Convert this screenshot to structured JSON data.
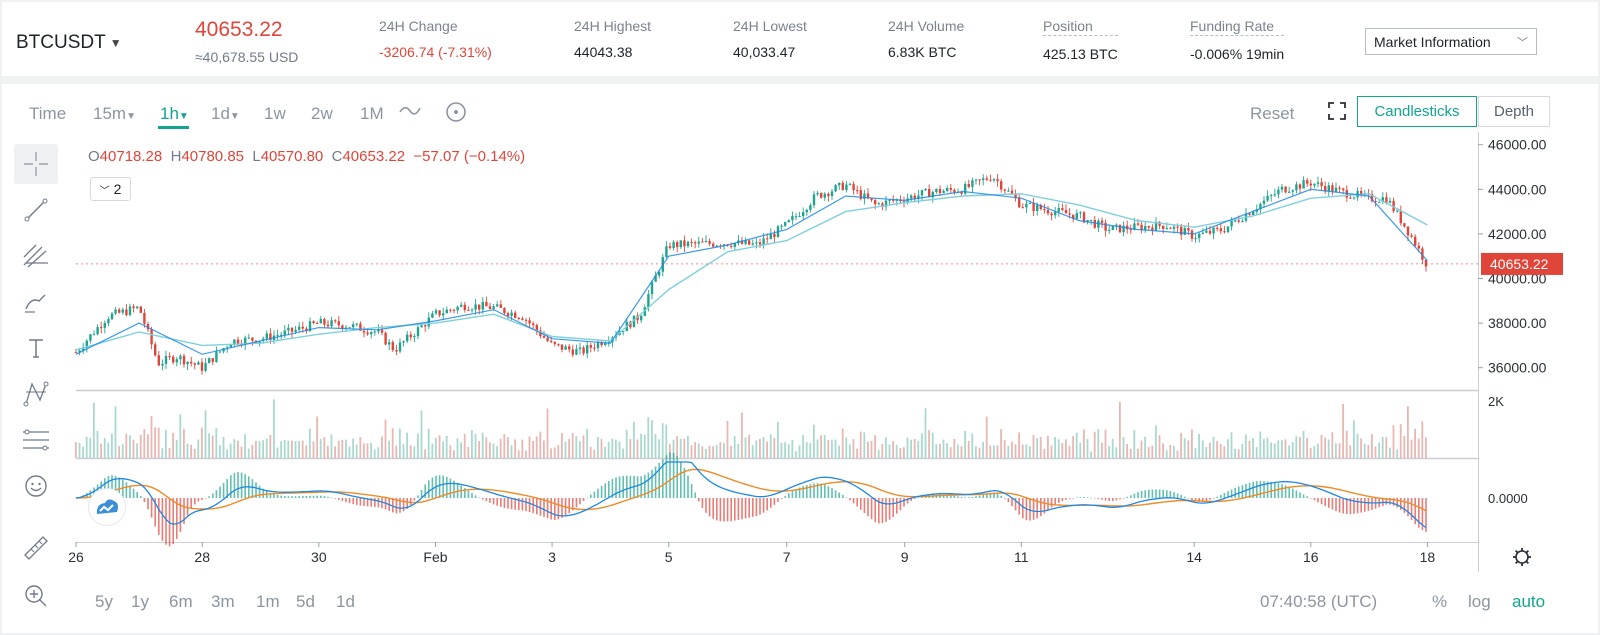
{
  "ticker": {
    "symbol": "BTCUSDT",
    "last_price": "40653.22",
    "usd_equiv": "≈40,678.55 USD",
    "stats": [
      {
        "label": "24H Change",
        "value": "-3206.74 (-7.31%)",
        "negative": true
      },
      {
        "label": "24H Highest",
        "value": "44043.38"
      },
      {
        "label": "24H Lowest",
        "value": "40,033.47"
      },
      {
        "label": "24H Volume",
        "value": "6.83K BTC"
      },
      {
        "label": "Position",
        "value": "425.13 BTC"
      },
      {
        "label": "Funding Rate",
        "value": "-0.006% 19min"
      }
    ],
    "market_info_label": "Market Information"
  },
  "toolbar": {
    "time_label": "Time",
    "intervals": [
      "15m",
      "1h",
      "1d",
      "1w",
      "2w",
      "1M"
    ],
    "active_interval": "1h",
    "reset_label": "Reset",
    "candlesticks_label": "Candlesticks",
    "depth_label": "Depth"
  },
  "ohlc": {
    "o_key": "O",
    "o": "40718.28",
    "h_key": "H",
    "h": "40780.85",
    "l_key": "L",
    "l": "40570.80",
    "c_key": "C",
    "c": "40653.22",
    "change": "−57.07 (−0.14%)"
  },
  "indicator_toggle": "2",
  "bottom": {
    "ranges": [
      "5y",
      "1y",
      "6m",
      "3m",
      "1m",
      "5d",
      "1d"
    ],
    "clock": "07:40:58 (UTC)",
    "percent": "%",
    "log": "log",
    "auto": "auto"
  },
  "colors": {
    "accent": "#12a48f",
    "up": "#1fa58f",
    "down": "#e0453a",
    "ma_fast": "#1e88e5",
    "ma_slow": "#7fd0dc",
    "macd_signal": "#f08a24"
  },
  "icons": [
    "crosshair-icon",
    "trendline-icon",
    "pitchfork-icon",
    "brush-icon",
    "text-icon",
    "pattern-icon",
    "fib-icon",
    "emoji-icon",
    "ruler-icon",
    "zoom-icon",
    "indicator-icon",
    "fullscreen-icon",
    "settings-icon"
  ],
  "chart_data": {
    "type": "candlestick",
    "y_axis_ticks": [
      "46000.00",
      "44000.00",
      "42000.00",
      "40000.00",
      "38000.00",
      "36000.00"
    ],
    "ylim": [
      35000,
      46300
    ],
    "x_axis_labels": [
      "26",
      "28",
      "30",
      "Feb",
      "3",
      "5",
      "7",
      "9",
      "11",
      "14",
      "16",
      "18"
    ],
    "last_price_label": "40653.22",
    "volume_axis_label": "2K",
    "macd_axis_label": "0.0000",
    "price_path": [
      [
        "26",
        36700
      ],
      [
        "26.5",
        38300
      ],
      [
        "27",
        38700
      ],
      [
        "27.3",
        36200
      ],
      [
        "27.6",
        36500
      ],
      [
        "28",
        36000
      ],
      [
        "28.5",
        37200
      ],
      [
        "29",
        37300
      ],
      [
        "29.5",
        37600
      ],
      [
        "30",
        38000
      ],
      [
        "30.5",
        37900
      ],
      [
        "31",
        37600
      ],
      [
        "31.3",
        36800
      ],
      [
        "Feb",
        38400
      ],
      [
        "1.5",
        38800
      ],
      [
        "2",
        38700
      ],
      [
        "2.5",
        38300
      ],
      [
        "3",
        37000
      ],
      [
        "3.5",
        36700
      ],
      [
        "4",
        37400
      ],
      [
        "4.5",
        38300
      ],
      [
        "5",
        41500
      ],
      [
        "6",
        41600
      ],
      [
        "6.5",
        41500
      ],
      [
        "7",
        42400
      ],
      [
        "7.5",
        43700
      ],
      [
        "8",
        44200
      ],
      [
        "8.5",
        43300
      ],
      [
        "9",
        43600
      ],
      [
        "9.5",
        43900
      ],
      [
        "10",
        44000
      ],
      [
        "10.5",
        44600
      ],
      [
        "11",
        43300
      ],
      [
        "12",
        42800
      ],
      [
        "12.5",
        42200
      ],
      [
        "13",
        42300
      ],
      [
        "13.5",
        42400
      ],
      [
        "14",
        41900
      ],
      [
        "14.5",
        42200
      ],
      [
        "15",
        43100
      ],
      [
        "15.5",
        44000
      ],
      [
        "16",
        44300
      ],
      [
        "16.5",
        43900
      ],
      [
        "17",
        43600
      ],
      [
        "17.3",
        43600
      ],
      [
        "17.7",
        42000
      ],
      [
        "18",
        40600
      ]
    ],
    "ma_fast": [
      [
        "26",
        36600
      ],
      [
        "27",
        38000
      ],
      [
        "28",
        36600
      ],
      [
        "29",
        37200
      ],
      [
        "30",
        37800
      ],
      [
        "31",
        37700
      ],
      [
        "Feb",
        38100
      ],
      [
        "2",
        38600
      ],
      [
        "3",
        37300
      ],
      [
        "4",
        37100
      ],
      [
        "5",
        41000
      ],
      [
        "6",
        41500
      ],
      [
        "7",
        42200
      ],
      [
        "8",
        43700
      ],
      [
        "9",
        43500
      ],
      [
        "10",
        43900
      ],
      [
        "11",
        43600
      ],
      [
        "12",
        42600
      ],
      [
        "13",
        42200
      ],
      [
        "14",
        42000
      ],
      [
        "15",
        43000
      ],
      [
        "16",
        44000
      ],
      [
        "17",
        43700
      ],
      [
        "18",
        40800
      ]
    ],
    "ma_slow": [
      [
        "26",
        36800
      ],
      [
        "27",
        37600
      ],
      [
        "28",
        37000
      ],
      [
        "29",
        37100
      ],
      [
        "30",
        37500
      ],
      [
        "31",
        37800
      ],
      [
        "Feb",
        38000
      ],
      [
        "2",
        38400
      ],
      [
        "3",
        37400
      ],
      [
        "4",
        37200
      ],
      [
        "5",
        39500
      ],
      [
        "6",
        41200
      ],
      [
        "7",
        41700
      ],
      [
        "8",
        43000
      ],
      [
        "9",
        43400
      ],
      [
        "10",
        43700
      ],
      [
        "11",
        43800
      ],
      [
        "12",
        43300
      ],
      [
        "13",
        42600
      ],
      [
        "14",
        42300
      ],
      [
        "15",
        42800
      ],
      [
        "16",
        43600
      ],
      [
        "17",
        43800
      ],
      [
        "18",
        42400
      ]
    ]
  }
}
